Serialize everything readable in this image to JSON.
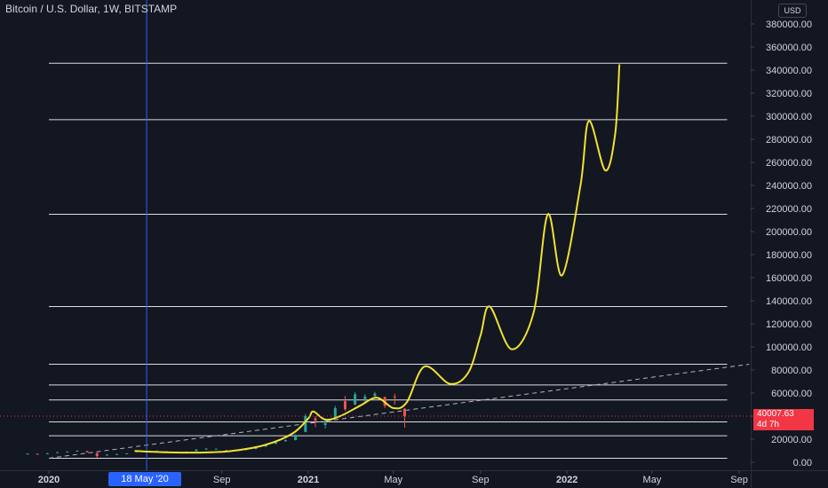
{
  "header": {
    "symbol_title": "Bitcoin / U.S. Dollar, 1W, BITSTAMP",
    "currency_label": "USD"
  },
  "price_badge": {
    "price": "40007.63",
    "countdown": "4d 7h",
    "color": "#f23645"
  },
  "cursor": {
    "date_label": "18 May '20",
    "color": "#2962ff"
  },
  "colors": {
    "background": "#131722",
    "projection": "#f0e130",
    "up_candle": "#26a69a",
    "down_candle": "#ef5350",
    "levels": "#ffffff",
    "trendline": "#b2b5be"
  },
  "chart_data": {
    "type": "line",
    "title": "Bitcoin / U.S. Dollar, 1W, BITSTAMP",
    "xlabel": "",
    "ylabel": "",
    "ylim": [
      -8000,
      385000
    ],
    "xlim": [
      "2019-12-01",
      "2022-10-01"
    ],
    "grid": false,
    "y_ticks": [
      0,
      20000,
      40000,
      60000,
      80000,
      100000,
      120000,
      140000,
      160000,
      180000,
      200000,
      220000,
      240000,
      260000,
      280000,
      300000,
      320000,
      340000,
      360000,
      380000
    ],
    "y_tick_labels": [
      "0.00",
      "20000.00",
      "40000.00",
      "60000.00",
      "80000.00",
      "100000.00",
      "120000.00",
      "140000.00",
      "160000.00",
      "180000.00",
      "200000.00",
      "220000.00",
      "240000.00",
      "260000.00",
      "280000.00",
      "300000.00",
      "320000.00",
      "340000.00",
      "360000.00",
      "380000.00"
    ],
    "x_ticks": [
      {
        "date": "2020-01-01",
        "label": "2020",
        "bold": true
      },
      {
        "date": "2020-09-01",
        "label": "Sep",
        "bold": false
      },
      {
        "date": "2021-01-01",
        "label": "2021",
        "bold": true
      },
      {
        "date": "2021-05-01",
        "label": "May",
        "bold": false
      },
      {
        "date": "2021-09-01",
        "label": "Sep",
        "bold": false
      },
      {
        "date": "2022-01-01",
        "label": "2022",
        "bold": true
      },
      {
        "date": "2022-05-01",
        "label": "May",
        "bold": false
      },
      {
        "date": "2022-09-01",
        "label": "Sep",
        "bold": false
      }
    ],
    "cursor_date": "2020-05-18",
    "horizontal_levels": {
      "x_start": "2020-01-01",
      "x_end": "2022-08-15",
      "values": [
        3500,
        23000,
        35000,
        54000,
        67000,
        85000,
        135000,
        215000,
        297000,
        346000
      ]
    },
    "trend_line": {
      "points": [
        {
          "x": "2020-01-01",
          "y": 3500
        },
        {
          "x": "2022-09-15",
          "y": 85000
        }
      ],
      "style": "dashed"
    },
    "current_price": 40007.63,
    "price_series": {
      "name": "",
      "ohlc": [
        {
          "x": "2019-12-02",
          "o": 7400,
          "h": 7800,
          "l": 7100,
          "c": 7500
        },
        {
          "x": "2019-12-16",
          "o": 7400,
          "h": 7600,
          "l": 6600,
          "c": 7200
        },
        {
          "x": "2019-12-30",
          "o": 7200,
          "h": 8100,
          "l": 6900,
          "c": 7800
        },
        {
          "x": "2020-01-13",
          "o": 8100,
          "h": 9000,
          "l": 8000,
          "c": 8700
        },
        {
          "x": "2020-01-27",
          "o": 8700,
          "h": 9500,
          "l": 8500,
          "c": 9300
        },
        {
          "x": "2020-02-10",
          "o": 9800,
          "h": 10400,
          "l": 9600,
          "c": 10000
        },
        {
          "x": "2020-02-24",
          "o": 9700,
          "h": 9900,
          "l": 8500,
          "c": 8600
        },
        {
          "x": "2020-03-09",
          "o": 8000,
          "h": 8200,
          "l": 3900,
          "c": 5300
        },
        {
          "x": "2020-03-23",
          "o": 5800,
          "h": 6900,
          "l": 5700,
          "c": 6600
        },
        {
          "x": "2020-04-06",
          "o": 6800,
          "h": 7400,
          "l": 6600,
          "c": 7100
        },
        {
          "x": "2020-04-20",
          "o": 7100,
          "h": 7900,
          "l": 6900,
          "c": 7700
        },
        {
          "x": "2020-05-04",
          "o": 8800,
          "h": 10000,
          "l": 8500,
          "c": 9500
        },
        {
          "x": "2020-05-18",
          "o": 9500,
          "h": 9800,
          "l": 8800,
          "c": 9200
        },
        {
          "x": "2020-06-01",
          "o": 9400,
          "h": 10300,
          "l": 9300,
          "c": 9700
        },
        {
          "x": "2020-06-15",
          "o": 9500,
          "h": 9700,
          "l": 9200,
          "c": 9300
        },
        {
          "x": "2020-06-29",
          "o": 9100,
          "h": 9400,
          "l": 8900,
          "c": 9200
        },
        {
          "x": "2020-07-13",
          "o": 9300,
          "h": 9400,
          "l": 9100,
          "c": 9200
        },
        {
          "x": "2020-07-27",
          "o": 9700,
          "h": 11400,
          "l": 9600,
          "c": 11000
        },
        {
          "x": "2020-08-10",
          "o": 11600,
          "h": 12400,
          "l": 11100,
          "c": 11800
        },
        {
          "x": "2020-08-24",
          "o": 11500,
          "h": 11800,
          "l": 11200,
          "c": 11700
        },
        {
          "x": "2020-09-07",
          "o": 10400,
          "h": 10800,
          "l": 9900,
          "c": 10300
        },
        {
          "x": "2020-09-21",
          "o": 10500,
          "h": 10900,
          "l": 10200,
          "c": 10700
        },
        {
          "x": "2020-10-05",
          "o": 10700,
          "h": 11500,
          "l": 10500,
          "c": 11300
        },
        {
          "x": "2020-10-19",
          "o": 11500,
          "h": 13200,
          "l": 11400,
          "c": 13000
        },
        {
          "x": "2020-11-02",
          "o": 13600,
          "h": 15900,
          "l": 13300,
          "c": 15500
        },
        {
          "x": "2020-11-16",
          "o": 16000,
          "h": 18900,
          "l": 15800,
          "c": 18400
        },
        {
          "x": "2020-11-30",
          "o": 18200,
          "h": 19800,
          "l": 18000,
          "c": 19200
        },
        {
          "x": "2020-12-14",
          "o": 19200,
          "h": 24200,
          "l": 19000,
          "c": 23800
        },
        {
          "x": "2020-12-28",
          "o": 26300,
          "h": 41900,
          "l": 26000,
          "c": 40000
        },
        {
          "x": "2021-01-11",
          "o": 38200,
          "h": 40000,
          "l": 30400,
          "c": 36000
        },
        {
          "x": "2021-01-25",
          "o": 32300,
          "h": 38000,
          "l": 29200,
          "c": 34000
        },
        {
          "x": "2021-02-08",
          "o": 38900,
          "h": 49000,
          "l": 38000,
          "c": 47000
        },
        {
          "x": "2021-02-22",
          "o": 53000,
          "h": 57500,
          "l": 44500,
          "c": 46000
        },
        {
          "x": "2021-03-08",
          "o": 50000,
          "h": 61000,
          "l": 49500,
          "c": 59000
        },
        {
          "x": "2021-03-22",
          "o": 55000,
          "h": 59000,
          "l": 50500,
          "c": 57000
        },
        {
          "x": "2021-04-05",
          "o": 57500,
          "h": 61000,
          "l": 55500,
          "c": 59500
        },
        {
          "x": "2021-04-19",
          "o": 56500,
          "h": 57000,
          "l": 47000,
          "c": 49000
        },
        {
          "x": "2021-05-03",
          "o": 57000,
          "h": 59500,
          "l": 50000,
          "c": 56500
        },
        {
          "x": "2021-05-17",
          "o": 46500,
          "h": 46800,
          "l": 30000,
          "c": 40000
        }
      ]
    },
    "projection": {
      "name": "",
      "color": "#f0e130",
      "points": [
        {
          "x": "2020-05-01",
          "y": 9800
        },
        {
          "x": "2020-06-15",
          "y": 8700
        },
        {
          "x": "2020-08-01",
          "y": 8400
        },
        {
          "x": "2020-09-15",
          "y": 9800
        },
        {
          "x": "2020-11-01",
          "y": 15000
        },
        {
          "x": "2020-12-10",
          "y": 25000
        },
        {
          "x": "2021-01-01",
          "y": 38000
        },
        {
          "x": "2021-01-08",
          "y": 44000
        },
        {
          "x": "2021-01-25",
          "y": 37000
        },
        {
          "x": "2021-02-15",
          "y": 40000
        },
        {
          "x": "2021-03-15",
          "y": 49000
        },
        {
          "x": "2021-04-08",
          "y": 56000
        },
        {
          "x": "2021-05-01",
          "y": 47000
        },
        {
          "x": "2021-05-20",
          "y": 52000
        },
        {
          "x": "2021-06-14",
          "y": 83000
        },
        {
          "x": "2021-07-20",
          "y": 68000
        },
        {
          "x": "2021-08-15",
          "y": 78000
        },
        {
          "x": "2021-09-01",
          "y": 110000
        },
        {
          "x": "2021-09-14",
          "y": 135000
        },
        {
          "x": "2021-10-15",
          "y": 98000
        },
        {
          "x": "2021-11-15",
          "y": 130000
        },
        {
          "x": "2021-12-05",
          "y": 215000
        },
        {
          "x": "2021-12-25",
          "y": 162000
        },
        {
          "x": "2022-01-20",
          "y": 240000
        },
        {
          "x": "2022-02-01",
          "y": 296000
        },
        {
          "x": "2022-02-24",
          "y": 253000
        },
        {
          "x": "2022-03-10",
          "y": 285000
        },
        {
          "x": "2022-03-16",
          "y": 345000
        }
      ]
    }
  }
}
